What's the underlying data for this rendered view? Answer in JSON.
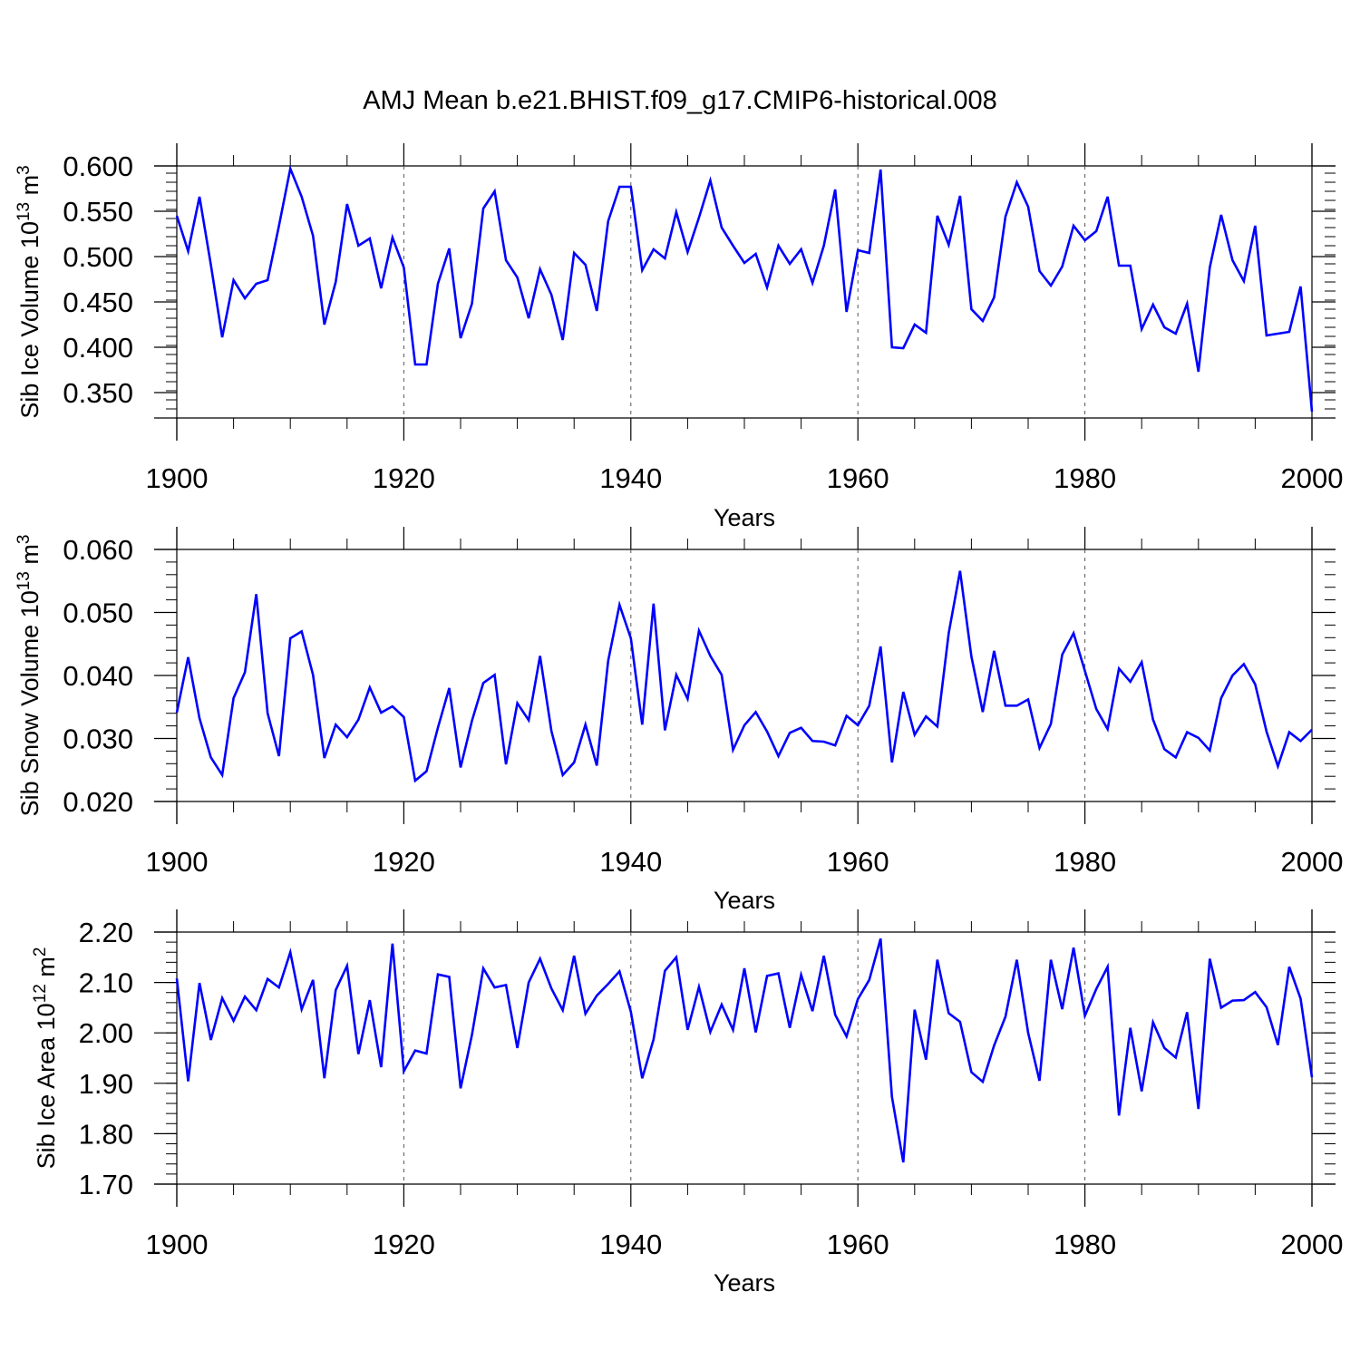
{
  "figure": {
    "title": "AMJ Mean b.e21.BHIST.f09_g17.CMIP6-historical.008"
  },
  "chart_data": [
    {
      "type": "line",
      "ylabel": "Sib Ice Volume 10",
      "ylabel_exp": "13",
      "ylabel_unit": "m",
      "ylabel_unit_exp": "3",
      "xlabel": "Years",
      "xlim": [
        1900,
        2000
      ],
      "ylim": [
        0.322,
        0.6
      ],
      "x_ticks": [
        1900,
        1920,
        1940,
        1960,
        1980,
        2000
      ],
      "x_tick_labels": [
        "1900",
        "1920",
        "1940",
        "1960",
        "1980",
        "2000"
      ],
      "y_ticks": [
        0.35,
        0.4,
        0.45,
        0.5,
        0.55,
        0.6
      ],
      "y_tick_labels": [
        "0.350",
        "0.400",
        "0.450",
        "0.500",
        "0.550",
        "0.600"
      ],
      "y_minor_step": 0.01,
      "grid_x": [
        1920,
        1940,
        1960,
        1980
      ],
      "series": [
        {
          "name": "Sib Ice Volume",
          "color": "#0000ff",
          "x_start": 1900,
          "values": [
            0.545,
            0.506,
            0.566,
            0.491,
            0.411,
            0.474,
            0.454,
            0.47,
            0.474,
            0.534,
            0.597,
            0.566,
            0.523,
            0.425,
            0.472,
            0.558,
            0.512,
            0.52,
            0.465,
            0.521,
            0.488,
            0.381,
            0.381,
            0.47,
            0.509,
            0.41,
            0.448,
            0.553,
            0.572,
            0.496,
            0.477,
            0.432,
            0.486,
            0.458,
            0.408,
            0.504,
            0.491,
            0.44,
            0.539,
            0.577,
            0.577,
            0.485,
            0.508,
            0.498,
            0.549,
            0.505,
            0.543,
            0.584,
            0.532,
            0.512,
            0.493,
            0.503,
            0.466,
            0.512,
            0.492,
            0.508,
            0.471,
            0.512,
            0.574,
            0.439,
            0.507,
            0.504,
            0.596,
            0.4,
            0.399,
            0.425,
            0.416,
            0.545,
            0.513,
            0.567,
            0.442,
            0.429,
            0.455,
            0.544,
            0.582,
            0.555,
            0.484,
            0.468,
            0.489,
            0.534,
            0.518,
            0.528,
            0.566,
            0.49,
            0.49,
            0.42,
            0.447,
            0.422,
            0.415,
            0.448,
            0.373,
            0.488,
            0.546,
            0.496,
            0.473,
            0.534,
            0.413,
            0.415,
            0.417,
            0.467,
            0.329
          ]
        }
      ]
    },
    {
      "type": "line",
      "ylabel": "Sib Snow Volume 10",
      "ylabel_exp": "13",
      "ylabel_unit": "m",
      "ylabel_unit_exp": "3",
      "xlabel": "Years",
      "xlim": [
        1900,
        2000
      ],
      "ylim": [
        0.02,
        0.06
      ],
      "x_ticks": [
        1900,
        1920,
        1940,
        1960,
        1980,
        2000
      ],
      "x_tick_labels": [
        "1900",
        "1920",
        "1940",
        "1960",
        "1980",
        "2000"
      ],
      "y_ticks": [
        0.02,
        0.03,
        0.04,
        0.05,
        0.06
      ],
      "y_tick_labels": [
        "0.020",
        "0.030",
        "0.040",
        "0.050",
        "0.060"
      ],
      "y_minor_step": 0.002,
      "grid_x": [
        1940,
        1960,
        1980
      ],
      "series": [
        {
          "name": "Sib Snow Volume",
          "color": "#0000ff",
          "x_start": 1900,
          "values": [
            0.0341,
            0.0429,
            0.0332,
            0.027,
            0.0242,
            0.0364,
            0.0405,
            0.0529,
            0.034,
            0.0272,
            0.0459,
            0.047,
            0.0401,
            0.0269,
            0.0322,
            0.0302,
            0.033,
            0.0381,
            0.0341,
            0.0351,
            0.0334,
            0.0233,
            0.0248,
            0.0317,
            0.038,
            0.0254,
            0.0328,
            0.0388,
            0.0401,
            0.0259,
            0.0356,
            0.0329,
            0.0431,
            0.0312,
            0.0242,
            0.0262,
            0.0322,
            0.0257,
            0.0423,
            0.0512,
            0.0459,
            0.0322,
            0.0514,
            0.0313,
            0.0401,
            0.0363,
            0.0471,
            0.0431,
            0.0401,
            0.0282,
            0.0321,
            0.0342,
            0.0311,
            0.0272,
            0.0309,
            0.0317,
            0.0296,
            0.0295,
            0.0289,
            0.0336,
            0.0321,
            0.0352,
            0.0446,
            0.0262,
            0.0374,
            0.0306,
            0.0335,
            0.0319,
            0.0467,
            0.0566,
            0.043,
            0.0342,
            0.0439,
            0.0352,
            0.0352,
            0.0362,
            0.0285,
            0.0323,
            0.0433,
            0.0467,
            0.0407,
            0.0347,
            0.0315,
            0.0411,
            0.039,
            0.0421,
            0.033,
            0.0283,
            0.027,
            0.031,
            0.0301,
            0.0281,
            0.0364,
            0.04,
            0.0418,
            0.0386,
            0.0311,
            0.0256,
            0.031,
            0.0296,
            0.0314
          ]
        }
      ]
    },
    {
      "type": "line",
      "ylabel": "Sib Ice Area 10",
      "ylabel_exp": "12",
      "ylabel_unit": "m",
      "ylabel_unit_exp": "2",
      "xlabel": "Years",
      "xlim": [
        1900,
        2000
      ],
      "ylim": [
        1.7,
        2.2
      ],
      "x_ticks": [
        1900,
        1920,
        1940,
        1960,
        1980,
        2000
      ],
      "x_tick_labels": [
        "1900",
        "1920",
        "1940",
        "1960",
        "1980",
        "2000"
      ],
      "y_ticks": [
        1.7,
        1.8,
        1.9,
        2.0,
        2.1,
        2.2
      ],
      "y_tick_labels": [
        "1.70",
        "1.80",
        "1.90",
        "2.00",
        "2.10",
        "2.20"
      ],
      "y_minor_step": 0.02,
      "grid_x": [
        1920,
        1940,
        1960,
        1980
      ],
      "series": [
        {
          "name": "Sib Ice Area",
          "color": "#0000ff",
          "x_start": 1900,
          "values": [
            2.108,
            1.904,
            2.099,
            1.986,
            2.069,
            2.024,
            2.072,
            2.045,
            2.107,
            2.09,
            2.16,
            2.047,
            2.105,
            1.91,
            2.085,
            2.133,
            1.958,
            2.065,
            1.932,
            2.177,
            1.924,
            1.965,
            1.959,
            2.116,
            2.111,
            1.89,
            1.996,
            2.128,
            2.09,
            2.095,
            1.97,
            2.1,
            2.147,
            2.088,
            2.045,
            2.153,
            2.038,
            2.074,
            2.097,
            2.122,
            2.042,
            1.91,
            1.987,
            2.123,
            2.15,
            2.006,
            2.091,
            2.002,
            2.056,
            2.006,
            2.128,
            2.001,
            2.113,
            2.118,
            2.01,
            2.115,
            2.043,
            2.153,
            2.036,
            1.993,
            2.067,
            2.105,
            2.187,
            1.873,
            1.743,
            2.046,
            1.947,
            2.145,
            2.039,
            2.022,
            1.922,
            1.903,
            1.975,
            2.032,
            2.145,
            2.0,
            1.905,
            2.145,
            2.047,
            2.169,
            2.034,
            2.087,
            2.131,
            1.836,
            2.01,
            1.884,
            2.021,
            1.97,
            1.951,
            2.041,
            1.849,
            2.147,
            2.05,
            2.064,
            2.065,
            2.081,
            2.051,
            1.976,
            2.131,
            2.068,
            1.912
          ]
        }
      ]
    }
  ]
}
